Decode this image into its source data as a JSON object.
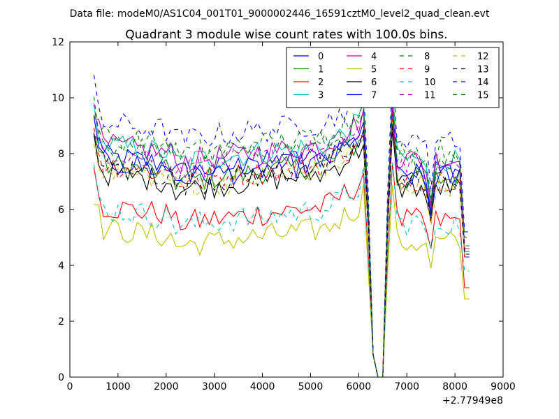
{
  "chart_data": {
    "type": "line",
    "suptitle": "Data file: modeM0/AS1C04_001T01_9000002446_16591cztM0_level2_quad_clean.evt",
    "title": "Quadrant 3 module wise count rates with 100.0s bins.",
    "xlabel": "",
    "ylabel": "",
    "x_offset_label": "+2.77949e8",
    "xlim": [
      0,
      9000
    ],
    "ylim": [
      0,
      12
    ],
    "xticks": [
      0,
      1000,
      2000,
      3000,
      4000,
      5000,
      6000,
      7000,
      8000,
      9000
    ],
    "yticks": [
      0,
      2,
      4,
      6,
      8,
      10,
      12
    ],
    "grid": false,
    "legend_position": "top-right",
    "legend_columns": 4,
    "series": [
      {
        "name": "0",
        "color": "#0000ff",
        "dash": "solid",
        "level": 7.6,
        "end": 4.4
      },
      {
        "name": "1",
        "color": "#008000",
        "dash": "solid",
        "level": 7.3,
        "end": 4.5
      },
      {
        "name": "2",
        "color": "#ff0000",
        "dash": "solid",
        "level": 5.8,
        "end": 3.2
      },
      {
        "name": "3",
        "color": "#00bfbf",
        "dash": "solid",
        "level": 8.0,
        "end": 4.3
      },
      {
        "name": "4",
        "color": "#bf00bf",
        "dash": "solid",
        "level": 8.0,
        "end": 4.6
      },
      {
        "name": "5",
        "color": "#bfbf00",
        "dash": "solid",
        "level": 5.0,
        "end": 2.8
      },
      {
        "name": "6",
        "color": "#000000",
        "dash": "solid",
        "level": 7.0,
        "end": 4.4
      },
      {
        "name": "7",
        "color": "#0000ff",
        "dash": "solid",
        "level": 7.4,
        "end": 4.3
      },
      {
        "name": "8",
        "color": "#008000",
        "dash": "dashed",
        "level": 8.0,
        "end": 4.7
      },
      {
        "name": "9",
        "color": "#ff0000",
        "dash": "dashed",
        "level": 7.3,
        "end": 4.3
      },
      {
        "name": "10",
        "color": "#00bfbf",
        "dash": "dashed",
        "level": 5.7,
        "end": 3.8
      },
      {
        "name": "11",
        "color": "#bf00bf",
        "dash": "dashed",
        "level": 7.8,
        "end": 4.6
      },
      {
        "name": "12",
        "color": "#bfbf00",
        "dash": "dashed",
        "level": 7.1,
        "end": 4.4
      },
      {
        "name": "13",
        "color": "#000000",
        "dash": "dashed",
        "level": 7.2,
        "end": 4.5
      },
      {
        "name": "14",
        "color": "#0000ff",
        "dash": "dashed",
        "level": 8.8,
        "end": 5.2
      },
      {
        "name": "15",
        "color": "#008000",
        "dash": "dashed",
        "level": 8.3,
        "end": 5.0
      }
    ],
    "x_start": 500,
    "x_end": 8300,
    "bin_width": 100
  }
}
